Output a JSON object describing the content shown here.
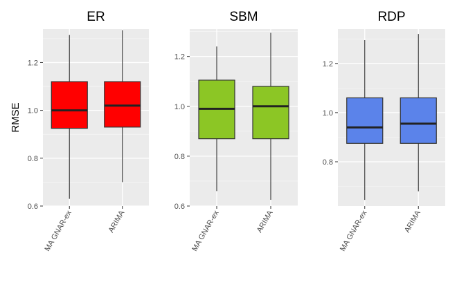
{
  "chart_data": {
    "type": "box",
    "ylabel": "RMSE",
    "categories": [
      "MA GNAR-ex",
      "ARIMA"
    ],
    "panels": [
      {
        "title": "ER",
        "fill": "#ff0000",
        "ylim": [
          0.6,
          1.34
        ],
        "yticks": [
          0.6,
          0.8,
          1.0,
          1.2
        ],
        "ytick_labels": [
          "0.6",
          "0.8",
          "1.0",
          "1.2"
        ],
        "boxes": [
          {
            "category": "MA GNAR-ex",
            "min": 0.63,
            "q1": 0.925,
            "median": 1.0,
            "q3": 1.12,
            "max": 1.315
          },
          {
            "category": "ARIMA",
            "min": 0.7,
            "q1": 0.93,
            "median": 1.02,
            "q3": 1.12,
            "max": 1.335
          }
        ]
      },
      {
        "title": "SBM",
        "fill": "#8cc625",
        "ylim": [
          0.6,
          1.31
        ],
        "yticks": [
          0.6,
          0.8,
          1.0,
          1.2
        ],
        "ytick_labels": [
          "0.6",
          "0.8",
          "1.0",
          "1.2"
        ],
        "boxes": [
          {
            "category": "MA GNAR-ex",
            "min": 0.66,
            "q1": 0.87,
            "median": 0.99,
            "q3": 1.105,
            "max": 1.24
          },
          {
            "category": "ARIMA",
            "min": 0.625,
            "q1": 0.87,
            "median": 1.0,
            "q3": 1.08,
            "max": 1.295
          }
        ]
      },
      {
        "title": "RDP",
        "fill": "#5b83ea",
        "ylim": [
          0.62,
          1.34
        ],
        "yticks": [
          0.8,
          1.0,
          1.2
        ],
        "ytick_labels": [
          "0.8",
          "1.0",
          "1.2"
        ],
        "boxes": [
          {
            "category": "MA GNAR-ex",
            "min": 0.645,
            "q1": 0.875,
            "median": 0.94,
            "q3": 1.06,
            "max": 1.295
          },
          {
            "category": "ARIMA",
            "min": 0.68,
            "q1": 0.875,
            "median": 0.955,
            "q3": 1.06,
            "max": 1.32
          }
        ]
      }
    ]
  }
}
